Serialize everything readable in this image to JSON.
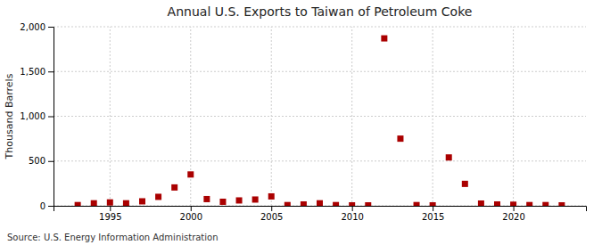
{
  "chart_data": {
    "type": "scatter",
    "title": "Annual U.S. Exports to Taiwan of Petroleum Coke",
    "ylabel": "Thousand Barrels",
    "source": "Source: U.S. Energy Information Administration",
    "color": "#aa0000",
    "marker": "square",
    "grid": true,
    "xlim": [
      1991.5,
      2024.5
    ],
    "xticks": [
      1995,
      2000,
      2005,
      2010,
      2015,
      2020
    ],
    "ylim": [
      0,
      2000
    ],
    "yticks": [
      0,
      500,
      {
        "value": 1000,
        "label": "1,000"
      },
      {
        "value": 1500,
        "label": "1,500"
      },
      {
        "value": 2000,
        "label": "2,000"
      }
    ],
    "x": [
      1993,
      1994,
      1995,
      1996,
      1997,
      1998,
      1999,
      2000,
      2001,
      2002,
      2003,
      2004,
      2005,
      2006,
      2007,
      2008,
      2009,
      2010,
      2011,
      2012,
      2013,
      2014,
      2015,
      2016,
      2017,
      2018,
      2019,
      2020,
      2021,
      2022,
      2023
    ],
    "values": [
      8,
      28,
      38,
      28,
      50,
      100,
      205,
      350,
      75,
      45,
      60,
      70,
      105,
      8,
      15,
      28,
      8,
      5,
      5,
      1870,
      750,
      8,
      5,
      540,
      245,
      25,
      15,
      12,
      8,
      8,
      5
    ]
  }
}
